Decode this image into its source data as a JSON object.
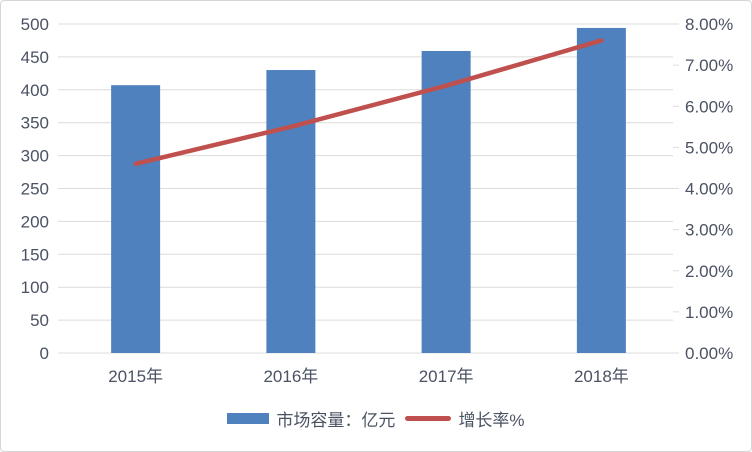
{
  "chart_data": {
    "type": "bar+line combo",
    "title": "",
    "categories": [
      "2015年",
      "2016年",
      "2017年",
      "2018年"
    ],
    "series": [
      {
        "name": "市场容量：亿元",
        "type": "bar",
        "axis": "left",
        "values": [
          407,
          430,
          459,
          494
        ],
        "color": "#4e81bd"
      },
      {
        "name": "增长率%",
        "type": "line",
        "axis": "right",
        "values": [
          4.6,
          5.5,
          6.5,
          7.6
        ],
        "color": "#c0504d"
      }
    ],
    "left_axis": {
      "min": 0,
      "max": 500,
      "step": 50,
      "ticks": [
        "0",
        "50",
        "100",
        "150",
        "200",
        "250",
        "300",
        "350",
        "400",
        "450",
        "500"
      ]
    },
    "right_axis": {
      "min": 0,
      "max": 8,
      "step": 1,
      "ticks": [
        "0.00%",
        "1.00%",
        "2.00%",
        "3.00%",
        "4.00%",
        "5.00%",
        "6.00%",
        "7.00%",
        "8.00%"
      ]
    },
    "grid": true,
    "legend_position": "bottom"
  },
  "colors": {
    "bar": "#4e81bd",
    "line": "#c0504d",
    "gridline": "#dcdcdc",
    "axis_text": "#4a5263",
    "frame_border": "#d6d6d6"
  },
  "legend": {
    "items": [
      {
        "label": "市场容量：亿元"
      },
      {
        "label": "增长率%"
      }
    ]
  }
}
